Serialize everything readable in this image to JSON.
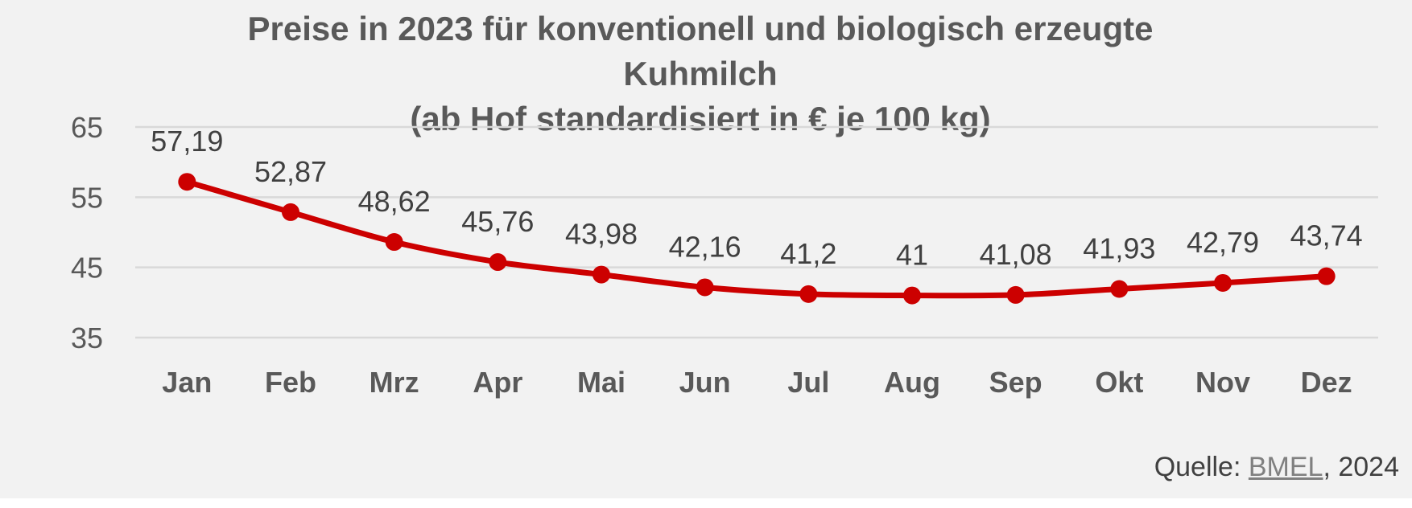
{
  "chart_data": {
    "type": "line",
    "title": "Preise in 2023 für konventionell und biologisch erzeugte Kuhmilch",
    "subtitle": "(ab Hof standardisiert in € je 100 kg)",
    "categories": [
      "Jan",
      "Feb",
      "Mrz",
      "Apr",
      "Mai",
      "Jun",
      "Jul",
      "Aug",
      "Sep",
      "Okt",
      "Nov",
      "Dez"
    ],
    "series": [
      {
        "values": [
          57.19,
          52.87,
          48.62,
          45.76,
          43.98,
          42.16,
          41.2,
          41,
          41.08,
          41.93,
          42.79,
          43.74
        ],
        "labels": [
          "57,19",
          "52,87",
          "48,62",
          "45,76",
          "43,98",
          "42,16",
          "41,2",
          "41",
          "41,08",
          "41,93",
          "42,79",
          "43,74"
        ],
        "color": "#cc0000"
      }
    ],
    "ylim": [
      35,
      65
    ],
    "yticks": [
      35,
      45,
      55,
      65
    ],
    "ytick_labels": [
      "35",
      "45",
      "55",
      "65"
    ],
    "grid": true,
    "gridline_color": "#d9d9d9",
    "line_style": "smooth"
  },
  "source": {
    "prefix": "Quelle: ",
    "link_text": "BMEL",
    "suffix": ", 2024"
  }
}
